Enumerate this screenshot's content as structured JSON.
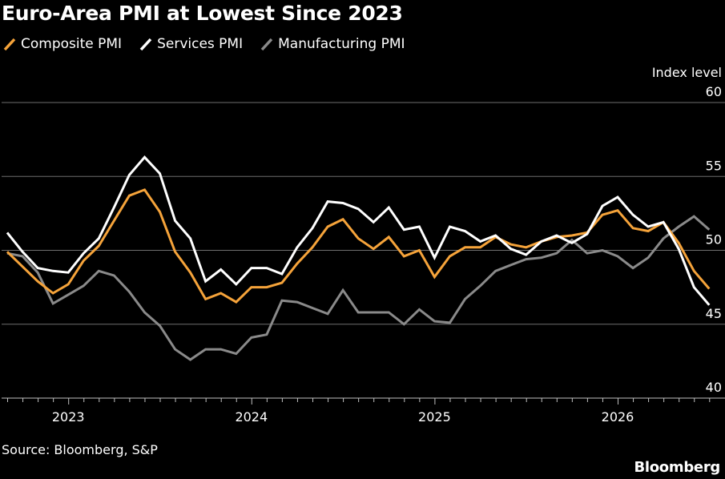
{
  "title": "Euro-Area PMI at Lowest Since 2023",
  "source": "Source: Bloomberg, S&P",
  "brand": "Bloomberg",
  "chart_data": {
    "type": "line",
    "title": "Euro-Area PMI at Lowest Since 2023",
    "ylabel": "Index level",
    "ylim": [
      40,
      60
    ],
    "yticks": [
      40,
      45,
      50,
      55,
      60
    ],
    "grid": true,
    "legend_position": "top-left",
    "year_labels": [
      {
        "label": "2023",
        "index": 4
      },
      {
        "label": "2024",
        "index": 16
      },
      {
        "label": "2025",
        "index": 28
      },
      {
        "label": "2026",
        "index": 40
      }
    ],
    "x_start": "2022-08",
    "x_count": 47,
    "series": [
      {
        "name": "Composite PMI",
        "color": "#f5a33a",
        "values": [
          49.9,
          48.9,
          47.9,
          47.1,
          47.7,
          49.3,
          50.3,
          52.0,
          53.7,
          54.1,
          52.6,
          49.9,
          48.5,
          46.7,
          47.1,
          46.5,
          47.5,
          47.5,
          47.8,
          49.1,
          50.2,
          51.6,
          52.1,
          50.8,
          50.1,
          50.9,
          49.6,
          50.0,
          48.2,
          49.6,
          50.2,
          50.2,
          50.9,
          50.4,
          50.2,
          50.6,
          50.9,
          51.0,
          51.2,
          52.4,
          52.7,
          51.5,
          51.3,
          51.9,
          50.5,
          48.6,
          47.4
        ]
      },
      {
        "name": "Services PMI",
        "color": "#ffffff",
        "values": [
          51.2,
          49.9,
          48.8,
          48.6,
          48.5,
          49.8,
          50.8,
          52.9,
          55.1,
          56.3,
          55.2,
          52.0,
          50.8,
          47.9,
          48.7,
          47.7,
          48.8,
          48.8,
          48.4,
          50.2,
          51.5,
          53.3,
          53.2,
          52.8,
          51.9,
          52.9,
          51.4,
          51.6,
          49.5,
          51.6,
          51.3,
          50.6,
          51.0,
          50.1,
          49.7,
          50.6,
          51.0,
          50.5,
          51.1,
          53.0,
          53.6,
          52.4,
          51.6,
          51.9,
          50.1,
          47.5,
          46.3
        ]
      },
      {
        "name": "Manufacturing PMI",
        "color": "#8a8a8a",
        "values": [
          49.8,
          49.6,
          48.5,
          46.4,
          47.0,
          47.6,
          48.6,
          48.3,
          47.2,
          45.8,
          44.9,
          43.3,
          42.6,
          43.3,
          43.3,
          43.0,
          44.1,
          44.3,
          46.6,
          46.5,
          46.1,
          45.7,
          47.3,
          45.8,
          45.8,
          45.8,
          45.0,
          46.0,
          45.2,
          45.1,
          46.7,
          47.6,
          48.6,
          49.0,
          49.4,
          49.5,
          49.8,
          50.7,
          49.8,
          50.0,
          49.6,
          48.8,
          49.5,
          50.8,
          51.6,
          52.3,
          51.4
        ]
      }
    ]
  }
}
